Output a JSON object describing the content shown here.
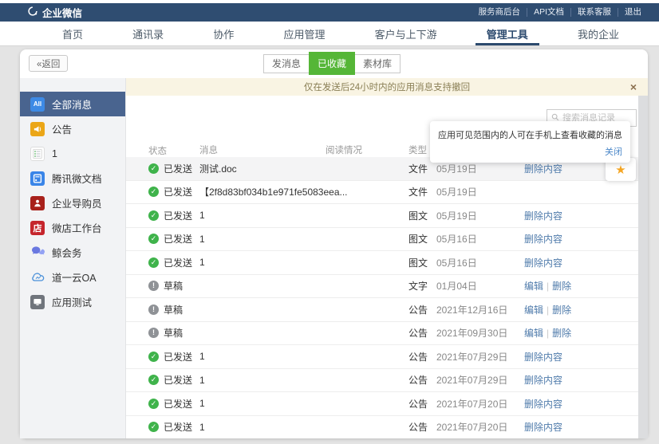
{
  "topbar": {
    "logo_text": "企业微信",
    "links": [
      "服务商后台",
      "API文档",
      "联系客服",
      "退出"
    ]
  },
  "nav": {
    "items": [
      {
        "label": "首页",
        "active": false
      },
      {
        "label": "通讯录",
        "active": false
      },
      {
        "label": "协作",
        "active": false
      },
      {
        "label": "应用管理",
        "active": false
      },
      {
        "label": "客户与上下游",
        "active": false
      },
      {
        "label": "管理工具",
        "active": true
      },
      {
        "label": "我的企业",
        "active": false
      }
    ]
  },
  "toolbar": {
    "back_label": "«返回",
    "tabs": [
      {
        "label": "发消息",
        "active": false
      },
      {
        "label": "已收藏",
        "active": true
      },
      {
        "label": "素材库",
        "active": false
      }
    ]
  },
  "notice": {
    "text": "仅在发送后24小时内的应用消息支持撤回",
    "close_glyph": "×"
  },
  "sidebar": {
    "items": [
      {
        "label": "全部消息",
        "icon": "all-icon",
        "active": true
      },
      {
        "label": "公告",
        "icon": "megaphone-icon",
        "active": false
      },
      {
        "label": "1",
        "icon": "notes-icon",
        "active": false
      },
      {
        "label": "腾讯微文档",
        "icon": "document-icon",
        "active": false
      },
      {
        "label": "企业导购员",
        "icon": "person-icon",
        "active": false
      },
      {
        "label": "微店工作台",
        "icon": "shop-icon",
        "active": false
      },
      {
        "label": "鲸会务",
        "icon": "chat-icon",
        "active": false
      },
      {
        "label": "道一云OA",
        "icon": "cloud-icon",
        "active": false
      },
      {
        "label": "应用测试",
        "icon": "monitor-icon",
        "active": false
      }
    ]
  },
  "search": {
    "placeholder": "搜索消息记录",
    "icon": "search-icon"
  },
  "tooltip": {
    "text": "应用可见范围内的人可在手机上查看收藏的消息",
    "close_label": "关闭",
    "star_glyph": "★"
  },
  "table": {
    "headers": [
      "状态",
      "消息",
      "阅读情况",
      "类型"
    ],
    "status_glyphs": {
      "sent": "✓",
      "draft": "!"
    },
    "rows": [
      {
        "state": "sent",
        "status": "已发送",
        "message": "测试.doc",
        "read": "",
        "type": "文件",
        "date": "05月19日",
        "actions": [
          "删除内容"
        ],
        "starred": true,
        "highlighted": true
      },
      {
        "state": "sent",
        "status": "已发送",
        "message": "【2f8d83bf034b1e971fe5083eea...",
        "read": "",
        "type": "文件",
        "date": "05月19日",
        "actions": [],
        "starred": false,
        "highlighted": false
      },
      {
        "state": "sent",
        "status": "已发送",
        "message": "1",
        "read": "",
        "type": "图文",
        "date": "05月19日",
        "actions": [
          "删除内容"
        ],
        "starred": false,
        "highlighted": false
      },
      {
        "state": "sent",
        "status": "已发送",
        "message": "1",
        "read": "",
        "type": "图文",
        "date": "05月16日",
        "actions": [
          "删除内容"
        ],
        "starred": false,
        "highlighted": false
      },
      {
        "state": "sent",
        "status": "已发送",
        "message": "1",
        "read": "",
        "type": "图文",
        "date": "05月16日",
        "actions": [
          "删除内容"
        ],
        "starred": false,
        "highlighted": false
      },
      {
        "state": "draft",
        "status": "草稿",
        "message": "",
        "read": "",
        "type": "文字",
        "date": "01月04日",
        "actions": [
          "编辑",
          "删除"
        ],
        "starred": false,
        "highlighted": false
      },
      {
        "state": "draft",
        "status": "草稿",
        "message": "",
        "read": "",
        "type": "公告",
        "date": "2021年12月16日",
        "actions": [
          "编辑",
          "删除"
        ],
        "starred": false,
        "highlighted": false
      },
      {
        "state": "draft",
        "status": "草稿",
        "message": "",
        "read": "",
        "type": "公告",
        "date": "2021年09月30日",
        "actions": [
          "编辑",
          "删除"
        ],
        "starred": false,
        "highlighted": false
      },
      {
        "state": "sent",
        "status": "已发送",
        "message": "1",
        "read": "",
        "type": "公告",
        "date": "2021年07月29日",
        "actions": [
          "删除内容"
        ],
        "starred": false,
        "highlighted": false
      },
      {
        "state": "sent",
        "status": "已发送",
        "message": "1",
        "read": "",
        "type": "公告",
        "date": "2021年07月29日",
        "actions": [
          "删除内容"
        ],
        "starred": false,
        "highlighted": false
      },
      {
        "state": "sent",
        "status": "已发送",
        "message": "1",
        "read": "",
        "type": "公告",
        "date": "2021年07月20日",
        "actions": [
          "删除内容"
        ],
        "starred": false,
        "highlighted": false
      },
      {
        "state": "sent",
        "status": "已发送",
        "message": "1",
        "read": "",
        "type": "公告",
        "date": "2021年07月20日",
        "actions": [
          "删除内容"
        ],
        "starred": false,
        "highlighted": false
      }
    ]
  },
  "colors": {
    "topbar_bg": "#2f4d71",
    "nav_active": "#2c4a6e",
    "tab_active_green": "#55b637",
    "notice_bg": "#f9f4e3",
    "sidebar_selected": "#49648f",
    "sent_green": "#3fb34b",
    "draft_gray": "#8f9296",
    "link_blue": "#4f7bab",
    "star_orange": "#f5a623"
  }
}
